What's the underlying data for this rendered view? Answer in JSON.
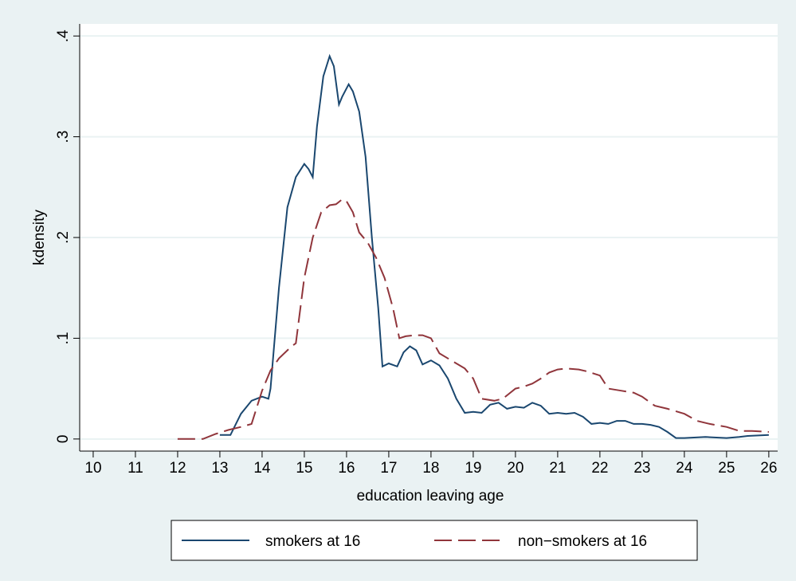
{
  "chart_data": {
    "type": "line",
    "x_label": "education leaving age",
    "y_label": "kdensity",
    "xlim": [
      9.68,
      26.21
    ],
    "ylim": [
      -0.012,
      0.412
    ],
    "xticks": [
      10,
      11,
      12,
      13,
      14,
      15,
      16,
      17,
      18,
      19,
      20,
      21,
      22,
      23,
      24,
      25,
      26
    ],
    "yticks": [
      0,
      {
        "value": 0.1,
        "label": ".1"
      },
      {
        "value": 0.2,
        "label": ".2"
      },
      {
        "value": 0.3,
        "label": ".3"
      },
      {
        "value": 0.4,
        "label": ".4"
      }
    ],
    "grid": true,
    "legend": "bottom",
    "series": [
      {
        "name": "smokers at 16",
        "color": "#1a476f",
        "dash": "solid",
        "x": [
          13.0,
          13.25,
          13.5,
          13.75,
          14.0,
          14.15,
          14.2,
          14.4,
          14.6,
          14.8,
          15.0,
          15.1,
          15.2,
          15.3,
          15.45,
          15.6,
          15.7,
          15.82,
          15.9,
          16.05,
          16.15,
          16.3,
          16.45,
          16.6,
          16.75,
          16.85,
          17.0,
          17.2,
          17.35,
          17.5,
          17.65,
          17.8,
          18.0,
          18.2,
          18.4,
          18.6,
          18.8,
          19.0,
          19.2,
          19.4,
          19.6,
          19.8,
          20.0,
          20.2,
          20.4,
          20.6,
          20.8,
          21.0,
          21.2,
          21.4,
          21.6,
          21.8,
          22.0,
          22.2,
          22.4,
          22.6,
          22.8,
          23.0,
          23.2,
          23.4,
          23.6,
          23.8,
          24.0,
          24.5,
          25.0,
          25.3,
          25.5,
          26.0
        ],
        "values": [
          0.004,
          0.004,
          0.025,
          0.038,
          0.042,
          0.04,
          0.05,
          0.15,
          0.23,
          0.26,
          0.273,
          0.268,
          0.26,
          0.31,
          0.36,
          0.38,
          0.37,
          0.332,
          0.34,
          0.352,
          0.345,
          0.325,
          0.28,
          0.2,
          0.13,
          0.072,
          0.075,
          0.072,
          0.086,
          0.092,
          0.088,
          0.074,
          0.078,
          0.073,
          0.06,
          0.04,
          0.026,
          0.027,
          0.026,
          0.034,
          0.036,
          0.03,
          0.032,
          0.031,
          0.036,
          0.033,
          0.025,
          0.026,
          0.025,
          0.026,
          0.022,
          0.015,
          0.016,
          0.015,
          0.018,
          0.018,
          0.015,
          0.015,
          0.014,
          0.012,
          0.007,
          0.001,
          0.001,
          0.002,
          0.001,
          0.002,
          0.003,
          0.004
        ]
      },
      {
        "name": "non−smokers at 16",
        "color": "#90353b",
        "dash": "dashed",
        "x": [
          12.0,
          12.6,
          12.9,
          13.2,
          13.5,
          13.75,
          14.0,
          14.2,
          14.4,
          14.7,
          14.8,
          15.0,
          15.2,
          15.4,
          15.6,
          15.75,
          15.9,
          16.0,
          16.15,
          16.3,
          16.5,
          16.7,
          16.9,
          17.1,
          17.25,
          17.4,
          17.6,
          17.8,
          18.0,
          18.2,
          18.4,
          18.6,
          18.8,
          19.0,
          19.2,
          19.5,
          19.7,
          20.0,
          20.2,
          20.4,
          20.6,
          20.8,
          21.0,
          21.2,
          21.5,
          21.7,
          22.0,
          22.2,
          22.5,
          22.8,
          23.0,
          23.3,
          23.6,
          24.0,
          24.3,
          24.6,
          25.0,
          25.3,
          25.6,
          26.0
        ],
        "values": [
          0.0,
          0.0,
          0.005,
          0.009,
          0.012,
          0.015,
          0.048,
          0.068,
          0.08,
          0.092,
          0.095,
          0.16,
          0.2,
          0.225,
          0.232,
          0.233,
          0.238,
          0.236,
          0.225,
          0.205,
          0.195,
          0.18,
          0.16,
          0.13,
          0.1,
          0.102,
          0.103,
          0.103,
          0.1,
          0.085,
          0.08,
          0.075,
          0.07,
          0.06,
          0.04,
          0.038,
          0.04,
          0.05,
          0.052,
          0.055,
          0.06,
          0.066,
          0.069,
          0.07,
          0.069,
          0.067,
          0.063,
          0.05,
          0.048,
          0.046,
          0.042,
          0.033,
          0.03,
          0.025,
          0.018,
          0.015,
          0.012,
          0.008,
          0.008,
          0.007
        ]
      }
    ]
  }
}
